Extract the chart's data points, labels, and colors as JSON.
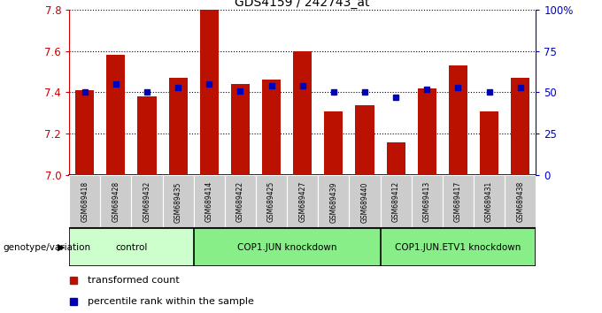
{
  "title": "GDS4159 / 242743_at",
  "samples": [
    "GSM689418",
    "GSM689428",
    "GSM689432",
    "GSM689435",
    "GSM689414",
    "GSM689422",
    "GSM689425",
    "GSM689427",
    "GSM689439",
    "GSM689440",
    "GSM689412",
    "GSM689413",
    "GSM689417",
    "GSM689431",
    "GSM689438"
  ],
  "bar_values": [
    7.41,
    7.58,
    7.38,
    7.47,
    7.8,
    7.44,
    7.46,
    7.6,
    7.31,
    7.34,
    7.16,
    7.42,
    7.53,
    7.31,
    7.47
  ],
  "percentile_values": [
    50,
    55,
    50,
    53,
    55,
    51,
    54,
    54,
    50,
    50,
    47,
    52,
    53,
    50,
    53
  ],
  "y_min": 7.0,
  "y_max": 7.8,
  "y_ticks": [
    7.0,
    7.2,
    7.4,
    7.6,
    7.8
  ],
  "right_y_ticks": [
    0,
    25,
    50,
    75,
    100
  ],
  "right_y_labels": [
    "0",
    "25",
    "50",
    "75",
    "100%"
  ],
  "groups": [
    {
      "label": "control",
      "start": 0,
      "end": 3,
      "color": "#ccffcc"
    },
    {
      "label": "COP1.JUN knockdown",
      "start": 4,
      "end": 9,
      "color": "#88ee88"
    },
    {
      "label": "COP1.JUN.ETV1 knockdown",
      "start": 10,
      "end": 14,
      "color": "#88ee88"
    }
  ],
  "bar_color": "#bb1100",
  "dot_color": "#0000bb",
  "sample_bg_color": "#cccccc",
  "title_color": "#000000",
  "left_axis_color": "#cc0000",
  "right_axis_color": "#0000cc",
  "genotype_label": "genotype/variation",
  "legend_bar_label": "transformed count",
  "legend_dot_label": "percentile rank within the sample"
}
